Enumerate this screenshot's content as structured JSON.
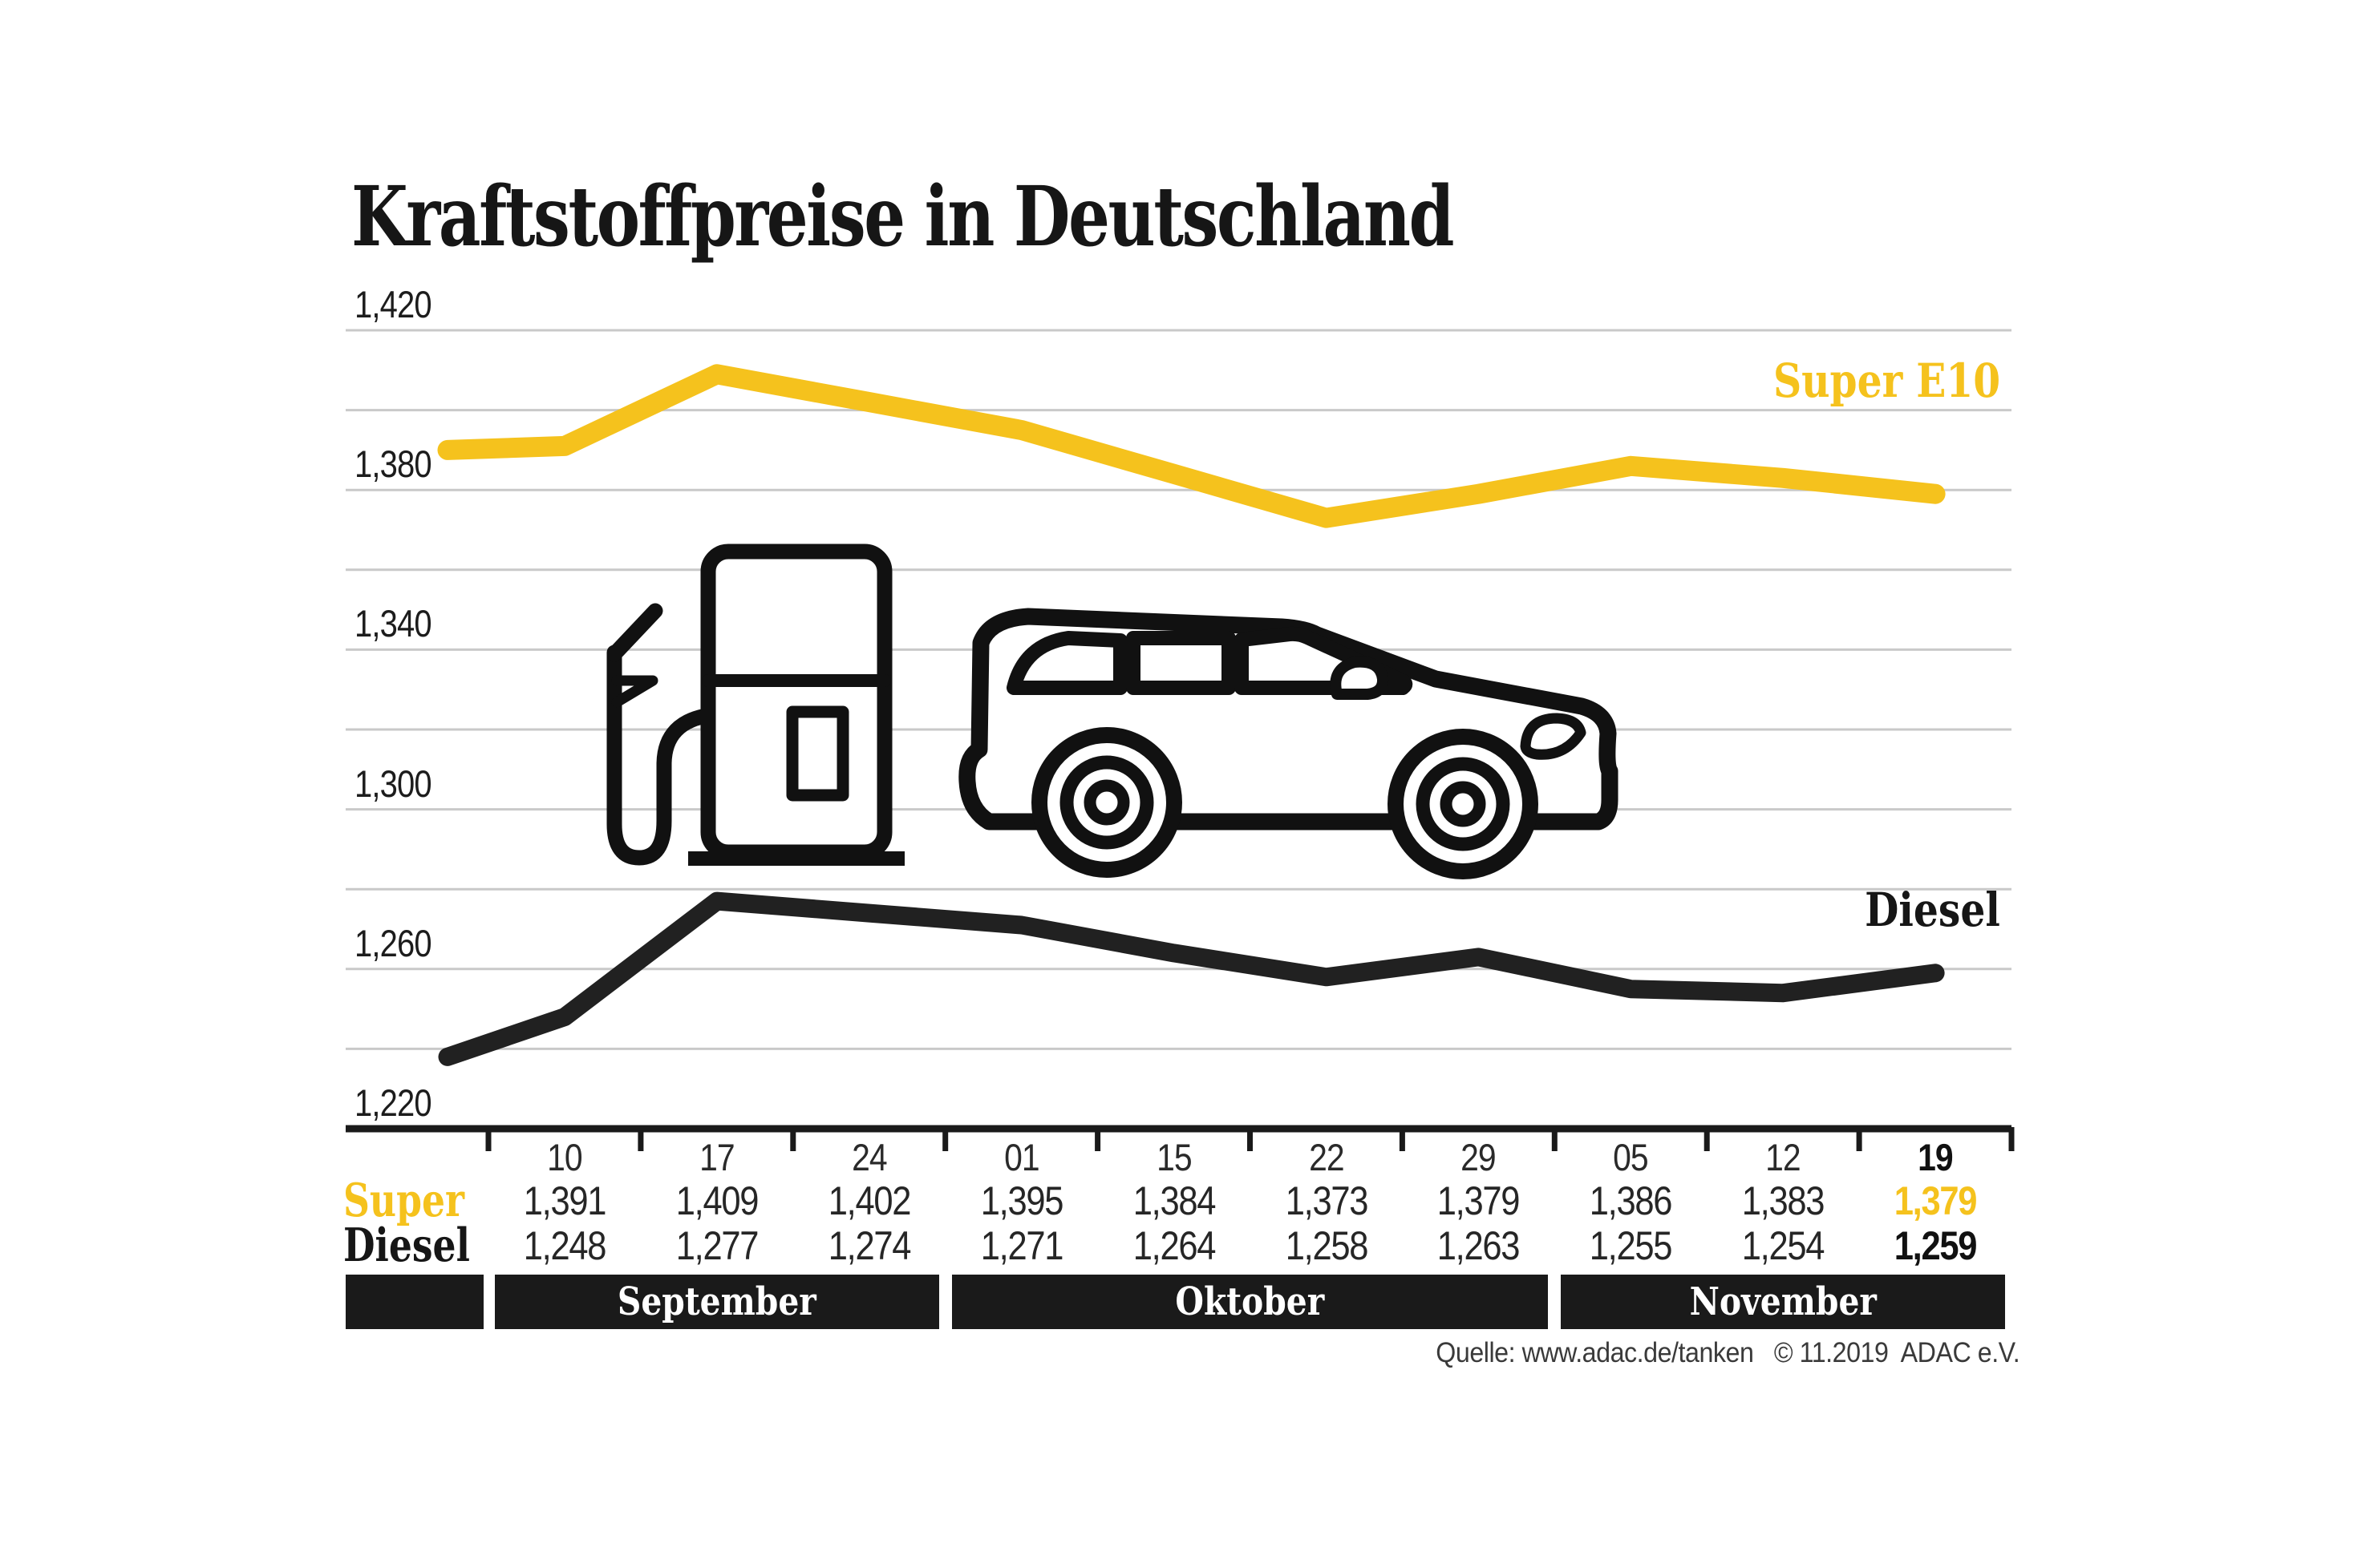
{
  "title": "Kraftstoffpreise in Deutschland",
  "source": "Quelle: www.adac.de/tanken   © 11.2019  ADAC e.V.",
  "colors": {
    "super_yellow": "#F5C21D",
    "diesel_black": "#212121",
    "grid_gray": "#c9c9c9",
    "axis_black": "#1a1a1a",
    "month_bar_bg": "#1a1a1a",
    "month_bar_text": "#ffffff"
  },
  "chart_data": {
    "type": "line",
    "title": "Kraftstoffpreise in Deutschland",
    "grid": true,
    "legend_position": "inline-right",
    "y_axis": {
      "min": 1.22,
      "max": 1.42,
      "grid_step": 0.02,
      "labeled_ticks": [
        "1,420",
        "1,380",
        "1,340",
        "1,300",
        "1,260",
        "1,220"
      ]
    },
    "categories": [
      "10",
      "17",
      "24",
      "01",
      "15",
      "22",
      "29",
      "05",
      "12",
      "19"
    ],
    "month_groups": [
      {
        "label": "September",
        "from": 0,
        "to": 2
      },
      {
        "label": "Oktober",
        "from": 3,
        "to": 6
      },
      {
        "label": "November",
        "from": 7,
        "to": 9
      }
    ],
    "series": [
      {
        "name": "Super E10",
        "row_label": "Super",
        "color": "#F5C21D",
        "values_display": [
          "1,391",
          "1,409",
          "1,402",
          "1,395",
          "1,384",
          "1,373",
          "1,379",
          "1,386",
          "1,383",
          "1,379"
        ],
        "lead_in_value_estimate": 1.39
      },
      {
        "name": "Diesel",
        "row_label": "Diesel",
        "color": "#212121",
        "values_display": [
          "1,248",
          "1,277",
          "1,274",
          "1,271",
          "1,264",
          "1,258",
          "1,263",
          "1,255",
          "1,254",
          "1,259"
        ],
        "lead_in_value_estimate": 1.238
      }
    ],
    "last_column_highlighted": true
  }
}
